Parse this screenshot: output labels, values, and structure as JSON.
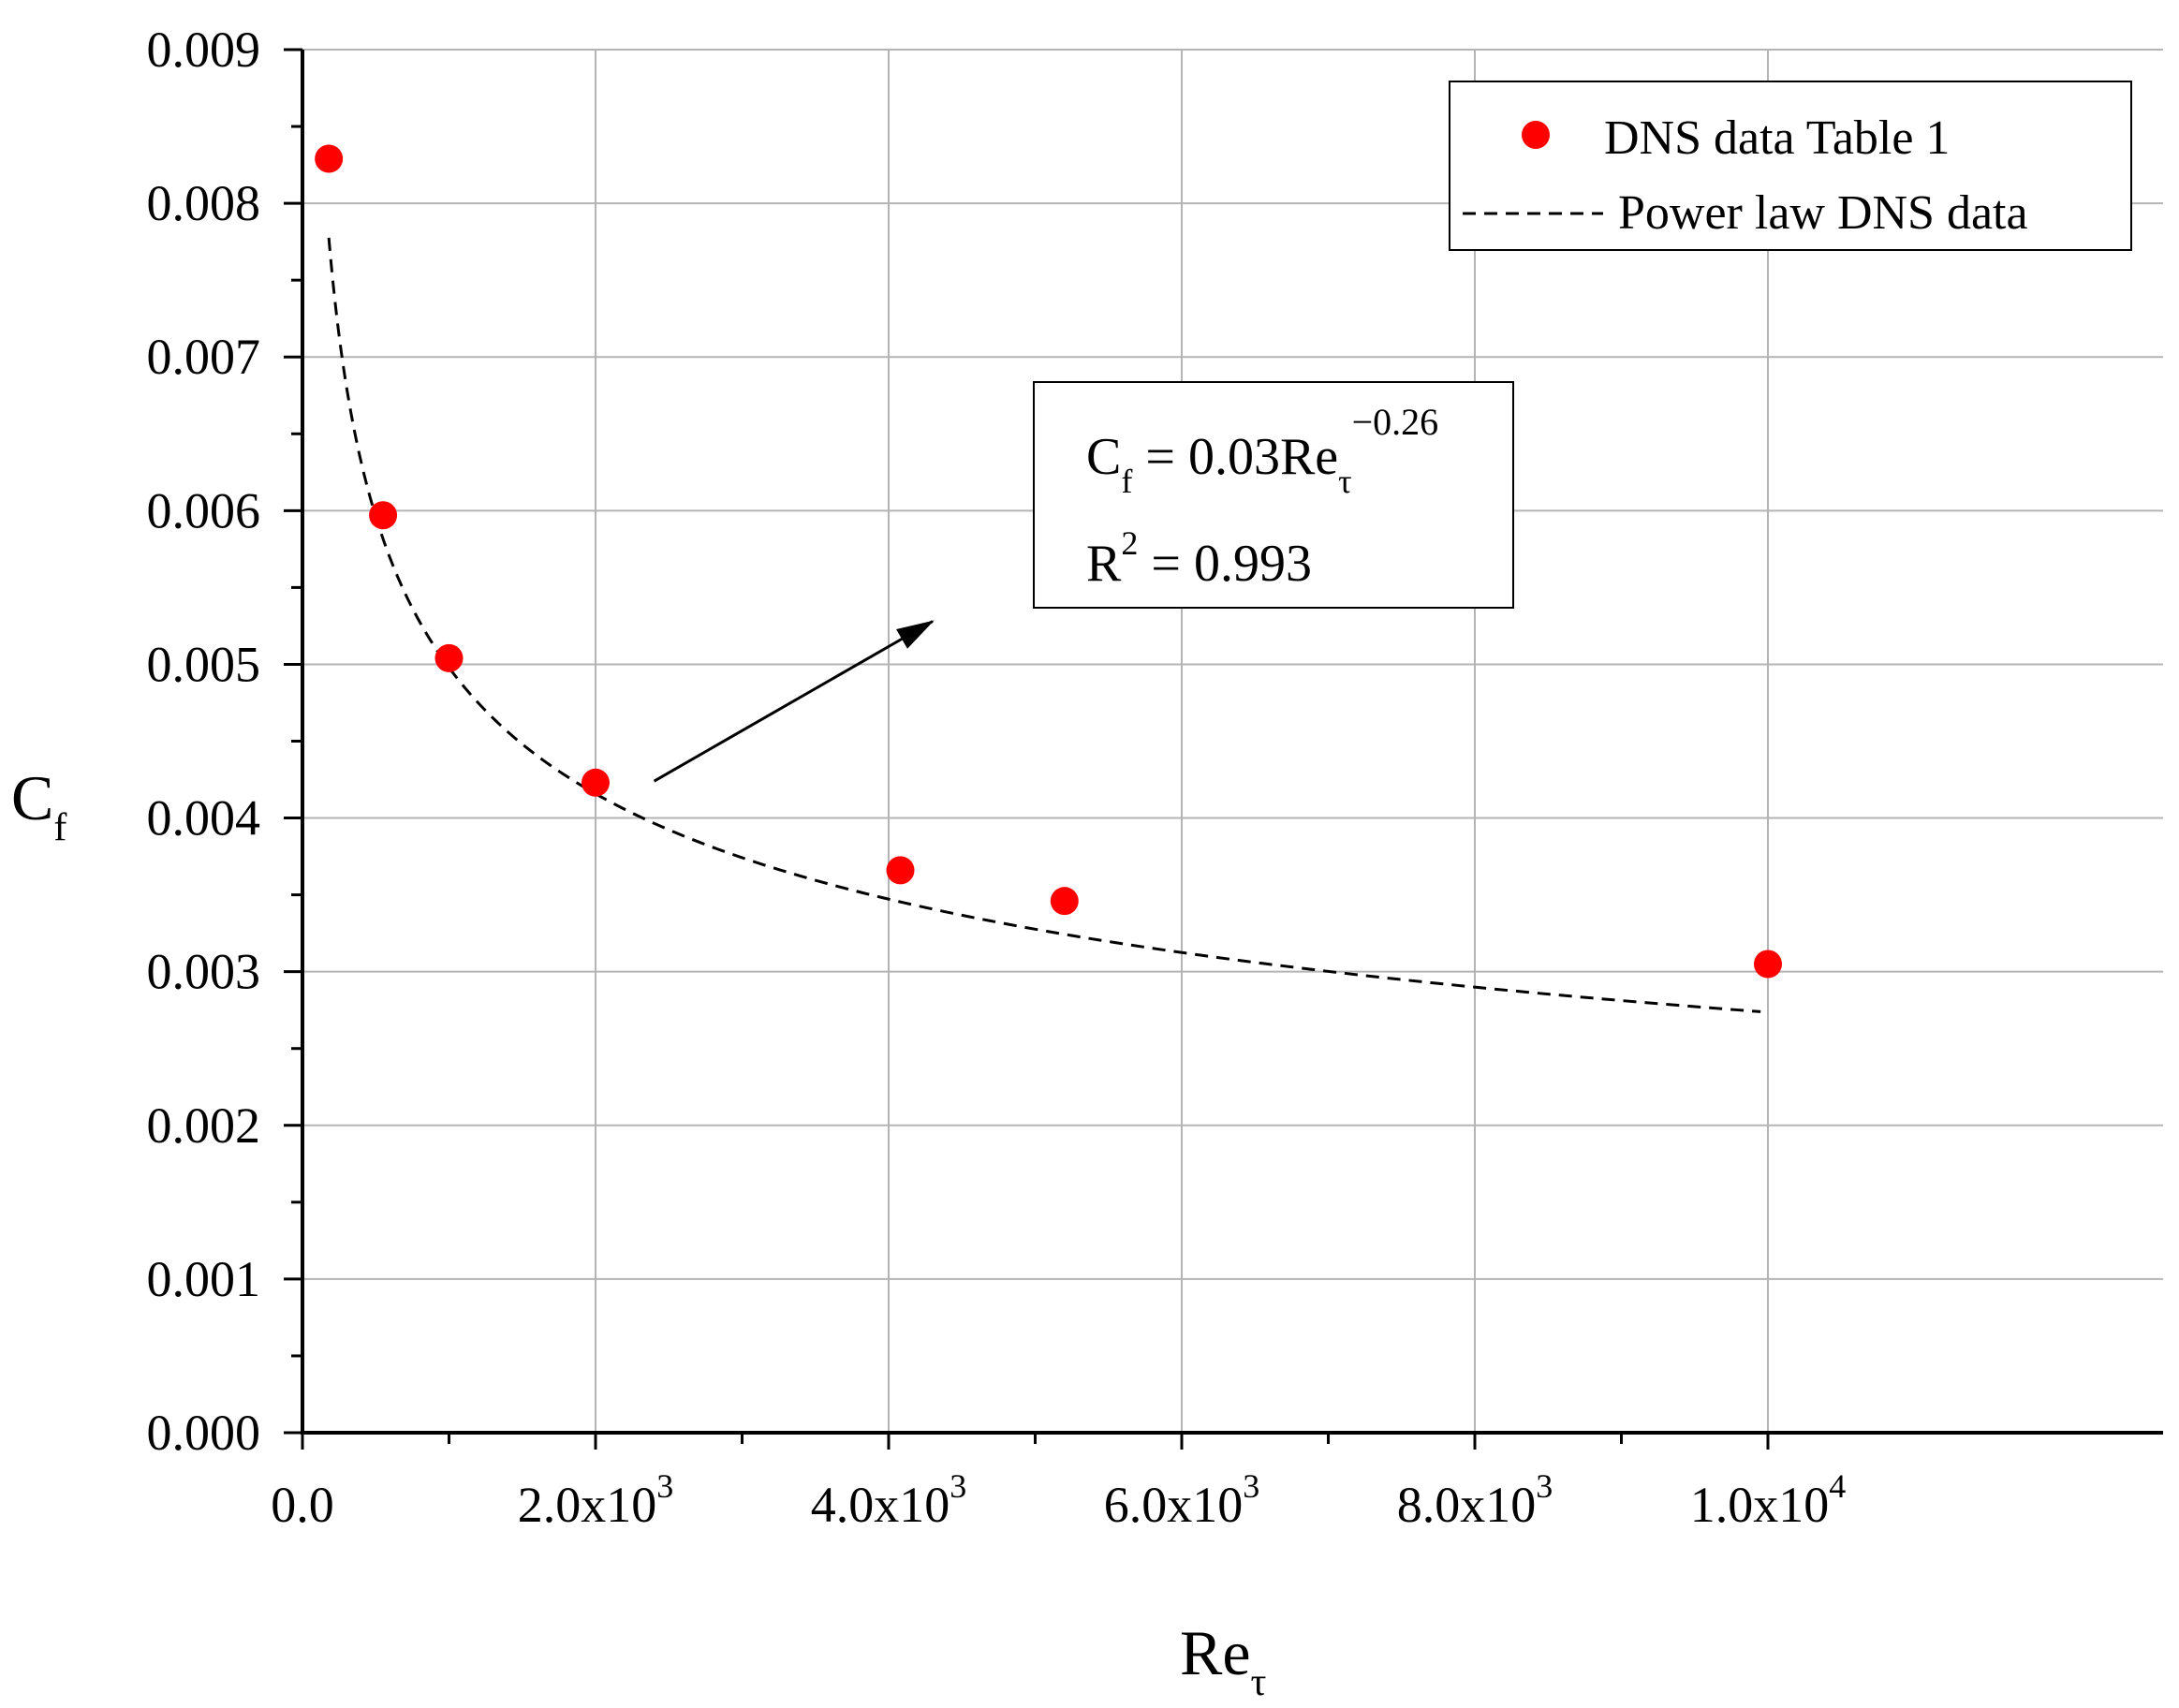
{
  "chart_data": {
    "type": "scatter",
    "xlabel": "Re",
    "xlabel_sub": "τ",
    "ylabel": "C",
    "ylabel_sub": "f",
    "xlim": [
      0,
      10500
    ],
    "ylim": [
      0,
      0.009
    ],
    "grid": true,
    "x_ticks": [
      {
        "value": 0,
        "mant": "0.0",
        "exp": ""
      },
      {
        "value": 2000,
        "mant": "2.0x10",
        "exp": "3"
      },
      {
        "value": 4000,
        "mant": "4.0x10",
        "exp": "3"
      },
      {
        "value": 6000,
        "mant": "6.0x10",
        "exp": "3"
      },
      {
        "value": 8000,
        "mant": "8.0x10",
        "exp": "3"
      },
      {
        "value": 10000,
        "mant": "1.0x10",
        "exp": "4"
      }
    ],
    "y_ticks": [
      {
        "value": 0.0,
        "label": "0.000"
      },
      {
        "value": 0.001,
        "label": "0.001"
      },
      {
        "value": 0.002,
        "label": "0.002"
      },
      {
        "value": 0.003,
        "label": "0.003"
      },
      {
        "value": 0.004,
        "label": "0.004"
      },
      {
        "value": 0.005,
        "label": "0.005"
      },
      {
        "value": 0.006,
        "label": "0.006"
      },
      {
        "value": 0.007,
        "label": "0.007"
      },
      {
        "value": 0.008,
        "label": "0.008"
      },
      {
        "value": 0.009,
        "label": "0.009"
      }
    ],
    "legend_position": "top-right",
    "series": [
      {
        "name": "DNS data Table 1",
        "kind": "scatter",
        "color": "#ff0000",
        "points": [
          {
            "x": 180,
            "y": 0.00829
          },
          {
            "x": 550,
            "y": 0.00597
          },
          {
            "x": 1000,
            "y": 0.00504
          },
          {
            "x": 2000,
            "y": 0.00423
          },
          {
            "x": 4080,
            "y": 0.00366
          },
          {
            "x": 5200,
            "y": 0.00346
          },
          {
            "x": 10000,
            "y": 0.00305
          }
        ]
      },
      {
        "name": "Power law DNS data",
        "kind": "line",
        "style": "dashed",
        "color": "#000000",
        "function": {
          "coef": 0.03,
          "exponent": -0.26,
          "x_from": 180,
          "x_to": 9950
        }
      }
    ],
    "annotation": {
      "eq_lhs": "C",
      "eq_lhs_sub": "f",
      "eq_rhs": " = 0.03Re",
      "eq_rhs_sub": "τ",
      "eq_rhs_sup": "−0.26",
      "r2_lhs": "R",
      "r2_sup": "2",
      "r2_rhs": " = 0.993",
      "arrow_from": {
        "x": 2400,
        "y": 0.00424
      },
      "arrow_to": {
        "x": 4300,
        "y": 0.00528
      }
    }
  }
}
